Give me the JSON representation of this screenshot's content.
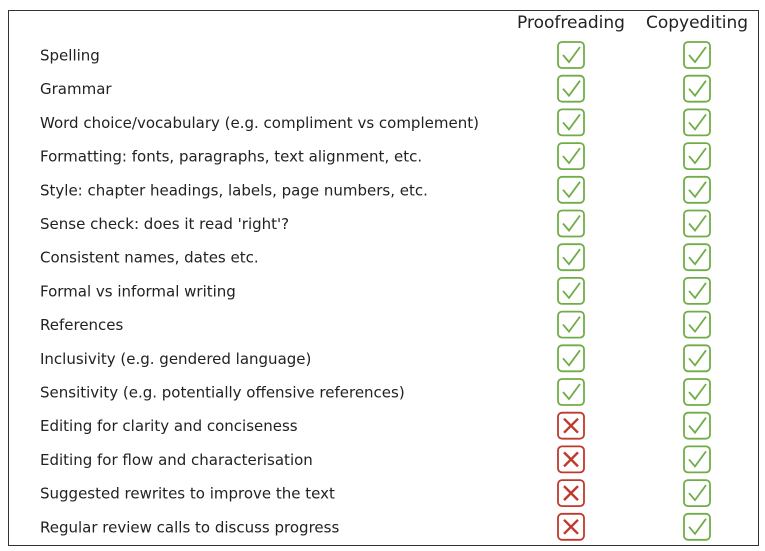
{
  "table": {
    "columns": [
      "Proofreading",
      "Copyediting"
    ],
    "rows": [
      {
        "label": "Spelling",
        "cells": [
          true,
          true
        ]
      },
      {
        "label": "Grammar",
        "cells": [
          true,
          true
        ]
      },
      {
        "label": "Word choice/vocabulary (e.g. compliment vs complement)",
        "cells": [
          true,
          true
        ]
      },
      {
        "label": "Formatting: fonts, paragraphs, text alignment, etc.",
        "cells": [
          true,
          true
        ]
      },
      {
        "label": "Style: chapter headings, labels, page numbers, etc.",
        "cells": [
          true,
          true
        ]
      },
      {
        "label": "Sense check: does it read 'right'?",
        "cells": [
          true,
          true
        ]
      },
      {
        "label": "Consistent names, dates etc.",
        "cells": [
          true,
          true
        ]
      },
      {
        "label": "Formal vs informal writing",
        "cells": [
          true,
          true
        ]
      },
      {
        "label": "References",
        "cells": [
          true,
          true
        ]
      },
      {
        "label": "Inclusivity (e.g. gendered language)",
        "cells": [
          true,
          true
        ]
      },
      {
        "label": "Sensitivity (e.g. potentially offensive references)",
        "cells": [
          true,
          true
        ]
      },
      {
        "label": "Editing for clarity and conciseness",
        "cells": [
          false,
          true
        ]
      },
      {
        "label": "Editing for flow and characterisation",
        "cells": [
          false,
          true
        ]
      },
      {
        "label": "Suggested rewrites to improve the text",
        "cells": [
          false,
          true
        ]
      },
      {
        "label": "Regular review calls to discuss progress",
        "cells": [
          false,
          true
        ]
      }
    ]
  }
}
